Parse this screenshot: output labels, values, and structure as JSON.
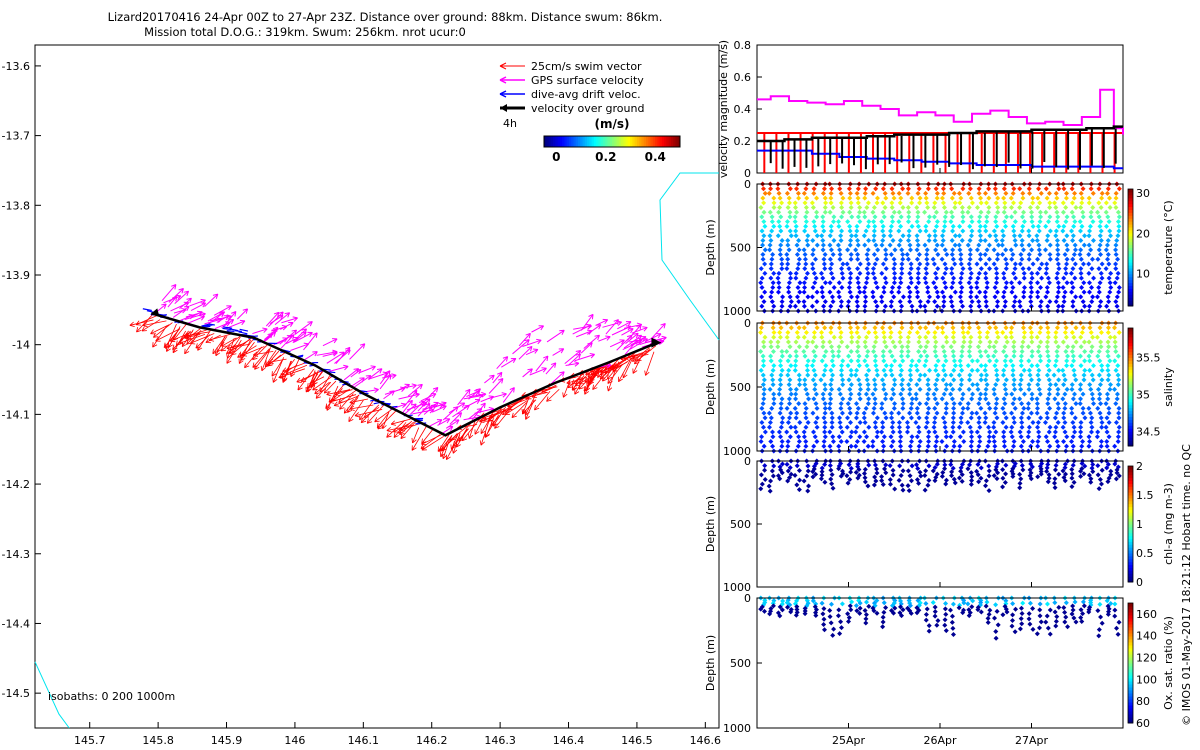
{
  "title": {
    "line1": "Lizard20170416 24-Apr 00Z to 27-Apr 23Z. Distance over ground: 88km. Distance swum: 86km.",
    "line2": "Mission total D.O.G.: 319km. Swum: 256km. nrot ucur:0"
  },
  "footer": "© IMOS 01-May-2017 18:21:12 Hobart time. no QC",
  "colors": {
    "swim": "#ff0000",
    "gps": "#ff00ff",
    "drift": "#0000ff",
    "ground": "#000000",
    "coast": "#00e5ee"
  },
  "chart_data": [
    {
      "id": "map",
      "type": "vector-map",
      "xlabel": "",
      "ylabel": "",
      "xlim": [
        145.62,
        146.62
      ],
      "ylim": [
        -14.55,
        -13.57
      ],
      "x_ticks": [
        "145.7",
        "145.8",
        "145.9",
        "146",
        "146.1",
        "146.2",
        "146.3",
        "146.4",
        "146.5",
        "146.6"
      ],
      "y_ticks": [
        "-13.6",
        "-13.7",
        "-13.8",
        "-13.9",
        "-14",
        "-14.1",
        "-14.2",
        "-14.3",
        "-14.4",
        "-14.5"
      ],
      "legend": {
        "items": [
          {
            "label": "25cm/s swim vector",
            "color": "#ff0000"
          },
          {
            "label": "GPS surface velocity",
            "color": "#ff00ff"
          },
          {
            "label": "dive-avg drift veloc.",
            "color": "#0000ff"
          },
          {
            "label": "velocity over ground",
            "color": "#000000"
          }
        ],
        "scale_label": "4h",
        "colorbar_title": "(m/s)",
        "colorbar_ticks": [
          "0",
          "0.2",
          "0.4"
        ],
        "colorbar_range": [
          -0.05,
          0.5
        ]
      },
      "track": [
        [
          145.79,
          -13.955
        ],
        [
          145.86,
          -13.975
        ],
        [
          145.94,
          -13.99
        ],
        [
          146.03,
          -14.03
        ],
        [
          146.1,
          -14.07
        ],
        [
          146.16,
          -14.1
        ],
        [
          146.22,
          -14.13
        ],
        [
          146.3,
          -14.09
        ],
        [
          146.38,
          -14.055
        ],
        [
          146.46,
          -14.025
        ],
        [
          146.53,
          -13.997
        ]
      ],
      "gps_top_offset": [
        [
          145.79,
          0.02
        ],
        [
          145.86,
          0.035
        ],
        [
          145.94,
          0.04
        ],
        [
          146.03,
          0.04
        ],
        [
          146.1,
          0.045
        ],
        [
          146.16,
          0.04
        ],
        [
          146.22,
          0.03
        ],
        [
          146.3,
          0.06
        ],
        [
          146.34,
          0.09
        ],
        [
          146.4,
          0.07
        ],
        [
          146.46,
          0.06
        ],
        [
          146.53,
          0.0
        ]
      ],
      "coastline_bottom": [
        [
          145.62,
          -14.455
        ],
        [
          145.655,
          -14.53
        ],
        [
          145.67,
          -14.55
        ]
      ],
      "isobaths_label": "isobaths: 0   200  1000m"
    },
    {
      "id": "velocity",
      "type": "line",
      "ylabel": "velocity magnitude (m/s)",
      "xlim": [
        24.0,
        28.0
      ],
      "ylim": [
        0,
        0.8
      ],
      "y_ticks": [
        "0",
        "0.2",
        "0.4",
        "0.6",
        "0.8"
      ],
      "series": [
        {
          "name": "GPS surface velocity",
          "color": "#ff00ff",
          "x": [
            24.0,
            24.15,
            24.35,
            24.55,
            24.75,
            24.95,
            25.15,
            25.35,
            25.55,
            25.75,
            25.95,
            26.15,
            26.35,
            26.55,
            26.75,
            26.95,
            27.15,
            27.35,
            27.55,
            27.75,
            27.9,
            28.0
          ],
          "values": [
            0.46,
            0.48,
            0.45,
            0.44,
            0.43,
            0.45,
            0.42,
            0.4,
            0.36,
            0.38,
            0.36,
            0.32,
            0.37,
            0.39,
            0.35,
            0.31,
            0.32,
            0.3,
            0.35,
            0.52,
            0.28,
            0.24
          ]
        },
        {
          "name": "swim vector",
          "color": "#ff0000",
          "x": [
            24.0,
            28.0
          ],
          "values": [
            0.25,
            0.25
          ]
        },
        {
          "name": "dive-avg drift",
          "color": "#0000ff",
          "x": [
            24.0,
            24.3,
            24.6,
            24.9,
            25.2,
            25.5,
            25.8,
            26.1,
            26.4,
            26.7,
            27.0,
            27.3,
            27.6,
            27.9,
            28.0
          ],
          "values": [
            0.14,
            0.14,
            0.12,
            0.1,
            0.09,
            0.08,
            0.07,
            0.06,
            0.05,
            0.05,
            0.04,
            0.04,
            0.04,
            0.03,
            0.03
          ]
        },
        {
          "name": "velocity over ground",
          "color": "#000000",
          "x": [
            24.0,
            24.3,
            24.6,
            24.9,
            25.2,
            25.5,
            25.8,
            26.1,
            26.4,
            26.7,
            27.0,
            27.3,
            27.6,
            27.9,
            28.0
          ],
          "values": [
            0.2,
            0.21,
            0.22,
            0.22,
            0.23,
            0.24,
            0.24,
            0.25,
            0.26,
            0.26,
            0.27,
            0.27,
            0.28,
            0.29,
            0.29
          ]
        }
      ]
    },
    {
      "id": "temperature",
      "type": "scatter-section",
      "ylabel": "Depth (m)",
      "ylim": [
        1000,
        0
      ],
      "y_ticks": [
        "0",
        "500",
        "1000"
      ],
      "colorbar_label": "temperature (°C)",
      "colorbar_ticks": [
        "10",
        "20",
        "30"
      ],
      "colorbar_range": [
        2,
        31
      ],
      "max_depth": 1000,
      "profiles": 42,
      "surface_value": 29,
      "deep_value": 4
    },
    {
      "id": "salinity",
      "type": "scatter-section",
      "ylabel": "Depth (m)",
      "ylim": [
        1000,
        0
      ],
      "y_ticks": [
        "0",
        "500",
        "1000"
      ],
      "colorbar_label": "salinity",
      "colorbar_ticks": [
        "34.5",
        "35",
        "35.5"
      ],
      "colorbar_range": [
        34.3,
        35.9
      ],
      "max_depth": 1000,
      "profiles": 42,
      "surface_value": 35.5,
      "deep_value": 34.45
    },
    {
      "id": "chla",
      "type": "scatter-section",
      "ylabel": "Depth (m)",
      "ylim": [
        1000,
        0
      ],
      "y_ticks": [
        "0",
        "500",
        "1000"
      ],
      "colorbar_label": "chl-a (mg m-3)",
      "colorbar_ticks": [
        "0",
        "0.5",
        "1",
        "1.5",
        "2"
      ],
      "colorbar_range": [
        0,
        2
      ],
      "max_depth": 220,
      "profiles": 42,
      "surface_value": 0.1,
      "deep_value": 0.05
    },
    {
      "id": "oxygen",
      "type": "scatter-section",
      "ylabel": "Depth (m)",
      "ylim": [
        1000,
        0
      ],
      "y_ticks": [
        "0",
        "500",
        "1000"
      ],
      "colorbar_label": "Ox. sat. ratio (%)",
      "colorbar_ticks": [
        "60",
        "80",
        "100",
        "120",
        "140",
        "160"
      ],
      "colorbar_range": [
        60,
        170
      ],
      "max_depth": 280,
      "profiles": 42,
      "surface_value": 90,
      "deep_value": 62,
      "x_ticks": [
        "25Apr",
        "26Apr",
        "27Apr"
      ],
      "x_tick_values": [
        25,
        26,
        27
      ],
      "xlim": [
        24.0,
        28.0
      ]
    }
  ]
}
